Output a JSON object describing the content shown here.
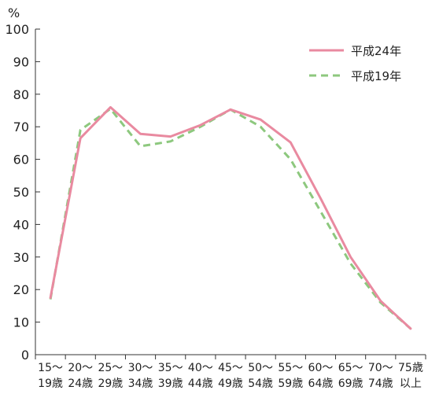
{
  "chart_data": {
    "type": "line",
    "title": "",
    "xlabel": "",
    "ylabel": "",
    "unit": "%",
    "ylim": [
      0,
      100
    ],
    "yticks": [
      0,
      10,
      20,
      30,
      40,
      50,
      60,
      70,
      80,
      90,
      100
    ],
    "grid": false,
    "legend_position": "top-right",
    "categories": [
      [
        "15～",
        "19歳"
      ],
      [
        "20～",
        "24歳"
      ],
      [
        "25～",
        "29歳"
      ],
      [
        "30～",
        "34歳"
      ],
      [
        "35～",
        "39歳"
      ],
      [
        "40～",
        "44歳"
      ],
      [
        "45～",
        "49歳"
      ],
      [
        "50～",
        "54歳"
      ],
      [
        "55～",
        "59歳"
      ],
      [
        "60～",
        "64歳"
      ],
      [
        "65～",
        "69歳"
      ],
      [
        "70～",
        "74歳"
      ],
      [
        "75歳",
        "以上"
      ]
    ],
    "series": [
      {
        "name": "平成24年",
        "color": "#e98aa0",
        "style": "solid",
        "values": [
          17.5,
          66.5,
          76.0,
          67.8,
          67.0,
          70.5,
          75.3,
          72.2,
          65.2,
          48.0,
          30.0,
          16.5,
          8.0
        ]
      },
      {
        "name": "平成19年",
        "color": "#8dc87e",
        "style": "dashed",
        "values": [
          17.0,
          69.0,
          75.5,
          64.0,
          65.5,
          70.0,
          75.3,
          70.0,
          60.0,
          44.0,
          28.0,
          16.0,
          8.0
        ]
      }
    ]
  }
}
